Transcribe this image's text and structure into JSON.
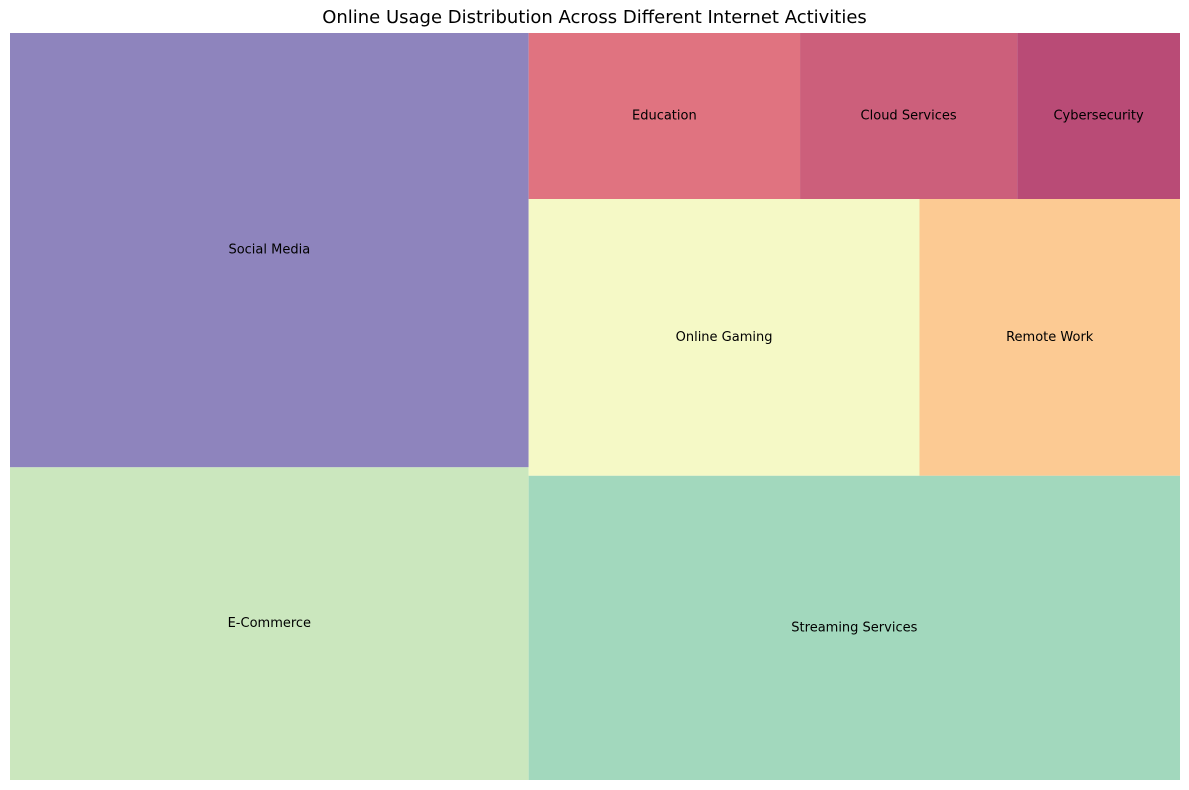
{
  "chart_data": {
    "type": "treemap",
    "title": "Online Usage Distribution Across Different Internet Activities",
    "items": [
      {
        "label": "Social Media",
        "value": 25,
        "color": "#8e84bd"
      },
      {
        "label": "E-Commerce",
        "value": 18,
        "color": "#cbe7be"
      },
      {
        "label": "Streaming Services",
        "value": 22,
        "color": "#a2d8bd"
      },
      {
        "label": "Online Gaming",
        "value": 12,
        "color": "#f5f9c6"
      },
      {
        "label": "Remote Work",
        "value": 8,
        "color": "#fcca93"
      },
      {
        "label": "Education",
        "value": 5,
        "color": "#e07380"
      },
      {
        "label": "Cloud Services",
        "value": 4,
        "color": "#cc5f7b"
      },
      {
        "label": "Cybersecurity",
        "value": 3,
        "color": "#b94b76"
      }
    ]
  }
}
